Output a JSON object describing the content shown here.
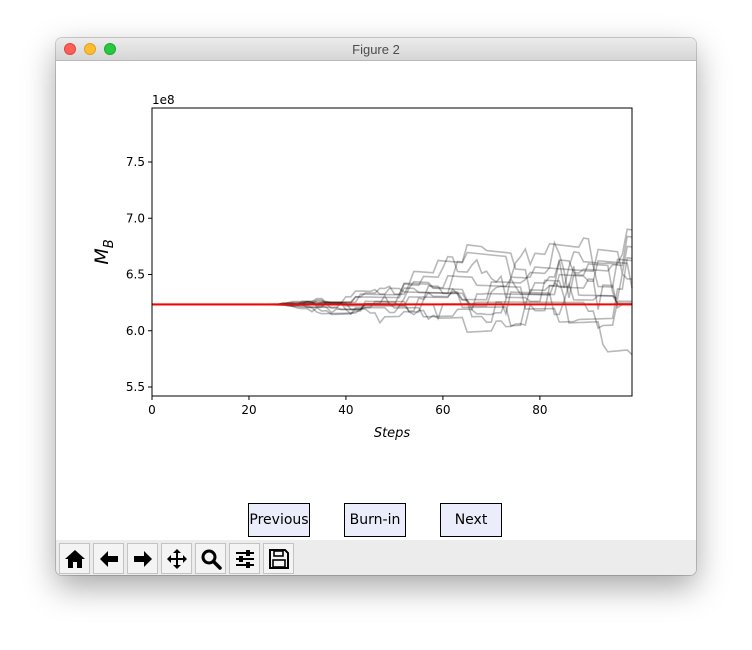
{
  "window": {
    "title": "Figure 2"
  },
  "chart_data": {
    "type": "line",
    "xlabel": "Steps",
    "ylabel": "M_B",
    "y_offset_label": "1e8",
    "xlim": [
      0,
      99
    ],
    "ylim": [
      5.42,
      7.98
    ],
    "x_ticks": [
      0,
      20,
      40,
      60,
      80
    ],
    "x_tick_labels": [
      "0",
      "20",
      "40",
      "60",
      "80"
    ],
    "y_ticks": [
      5.5,
      6.0,
      6.5,
      7.0,
      7.5
    ],
    "y_tick_labels": [
      "5.5",
      "6.0",
      "6.5",
      "7.0",
      "7.5"
    ],
    "reference_line": {
      "value": 6.235,
      "color": "#ff0000"
    },
    "walker_color": "#000000",
    "walker_count": 12
  },
  "buttons": {
    "previous": "Previous",
    "burnin": "Burn-in",
    "next": "Next"
  },
  "toolbar": [
    "home-icon",
    "back-icon",
    "forward-icon",
    "pan-icon",
    "zoom-icon",
    "configure-subplots-icon",
    "save-icon"
  ]
}
